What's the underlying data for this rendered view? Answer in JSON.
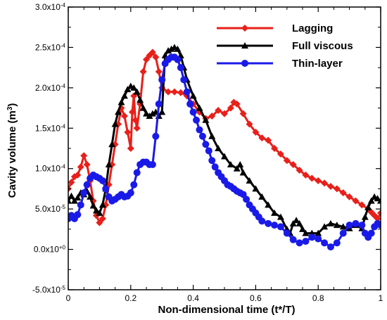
{
  "chart_data": {
    "type": "line",
    "title": "",
    "xlabel": "Non-dimensional time (t*/T)",
    "ylabel": "Cavity volume (m³)",
    "xlim": [
      0,
      1
    ],
    "ylim": [
      -5e-05,
      0.0003
    ],
    "grid": false,
    "legend_position": "top-right",
    "x_ticks": [
      {
        "value": 0,
        "label": "0"
      },
      {
        "value": 0.2,
        "label": "0.2"
      },
      {
        "value": 0.4,
        "label": "0.4"
      },
      {
        "value": 0.6,
        "label": "0.6"
      },
      {
        "value": 0.8,
        "label": "0.8"
      },
      {
        "value": 1,
        "label": "1"
      }
    ],
    "y_ticks": [
      {
        "value": -5e-05,
        "mant": "-5.0x10",
        "exp": "-5"
      },
      {
        "value": 0,
        "mant": "0.0x10",
        "exp": "+0"
      },
      {
        "value": 5e-05,
        "mant": "5.0x10",
        "exp": "-5"
      },
      {
        "value": 0.0001,
        "mant": "1.0x10",
        "exp": "-4"
      },
      {
        "value": 0.00015,
        "mant": "1.5x10",
        "exp": "-4"
      },
      {
        "value": 0.0002,
        "mant": "2.0x10",
        "exp": "-4"
      },
      {
        "value": 0.00025,
        "mant": "2.5x10",
        "exp": "-4"
      },
      {
        "value": 0.0003,
        "mant": "3.0x10",
        "exp": "-4"
      }
    ],
    "series": [
      {
        "name": "Lagging",
        "color": "#e8201a",
        "marker": "diamond",
        "points": [
          [
            0.0,
            7.5e-05
          ],
          [
            0.01,
            8.3e-05
          ],
          [
            0.02,
            9e-05
          ],
          [
            0.03,
            9.2e-05
          ],
          [
            0.04,
            0.000102
          ],
          [
            0.05,
            0.000116
          ],
          [
            0.06,
            0.000105
          ],
          [
            0.07,
            8.5e-05
          ],
          [
            0.08,
            6e-05
          ],
          [
            0.09,
            4.2e-05
          ],
          [
            0.1,
            3.3e-05
          ],
          [
            0.11,
            3.8e-05
          ],
          [
            0.12,
            5.5e-05
          ],
          [
            0.13,
            8e-05
          ],
          [
            0.14,
            0.000105
          ],
          [
            0.15,
            0.00013
          ],
          [
            0.16,
            0.000155
          ],
          [
            0.17,
            0.000175
          ],
          [
            0.18,
            0.000165
          ],
          [
            0.19,
            0.000145
          ],
          [
            0.2,
            0.000125
          ],
          [
            0.205,
            0.00017
          ],
          [
            0.21,
            0.00019
          ],
          [
            0.215,
            0.00016
          ],
          [
            0.22,
            0.00015
          ],
          [
            0.23,
            0.00018
          ],
          [
            0.24,
            0.00022
          ],
          [
            0.25,
            0.000235
          ],
          [
            0.26,
            0.00024
          ],
          [
            0.27,
            0.000244
          ],
          [
            0.28,
            0.000238
          ],
          [
            0.29,
            0.00022
          ],
          [
            0.3,
            0.0002
          ],
          [
            0.32,
            0.000195
          ],
          [
            0.34,
            0.000195
          ],
          [
            0.36,
            0.000194
          ],
          [
            0.38,
            0.00019
          ],
          [
            0.4,
            0.00018
          ],
          [
            0.42,
            0.00017
          ],
          [
            0.44,
            0.000162
          ],
          [
            0.46,
            0.000165
          ],
          [
            0.48,
            0.000172
          ],
          [
            0.5,
            0.000168
          ],
          [
            0.52,
            0.000175
          ],
          [
            0.53,
            0.000182
          ],
          [
            0.54,
            0.00018
          ],
          [
            0.56,
            0.000168
          ],
          [
            0.58,
            0.000155
          ],
          [
            0.6,
            0.000145
          ],
          [
            0.62,
            0.000138
          ],
          [
            0.64,
            0.000135
          ],
          [
            0.66,
            0.000125
          ],
          [
            0.68,
            0.000118
          ],
          [
            0.7,
            0.00011
          ],
          [
            0.72,
            0.000105
          ],
          [
            0.74,
            9.8e-05
          ],
          [
            0.76,
            9.2e-05
          ],
          [
            0.78,
            8.8e-05
          ],
          [
            0.8,
            8.5e-05
          ],
          [
            0.82,
            8.2e-05
          ],
          [
            0.84,
            7.8e-05
          ],
          [
            0.86,
            7.5e-05
          ],
          [
            0.88,
            7e-05
          ],
          [
            0.9,
            6.5e-05
          ],
          [
            0.92,
            6e-05
          ],
          [
            0.94,
            5.5e-05
          ],
          [
            0.96,
            5e-05
          ],
          [
            0.97,
            4.6e-05
          ],
          [
            0.98,
            4.2e-05
          ],
          [
            0.99,
            3.8e-05
          ],
          [
            1.0,
            4.5e-05
          ]
        ]
      },
      {
        "name": "Full viscous",
        "color": "#000000",
        "marker": "triangle",
        "points": [
          [
            0.0,
            6e-05
          ],
          [
            0.01,
            6.6e-05
          ],
          [
            0.02,
            6e-05
          ],
          [
            0.03,
            6.4e-05
          ],
          [
            0.04,
            7e-05
          ],
          [
            0.05,
            6.8e-05
          ],
          [
            0.06,
            7.2e-05
          ],
          [
            0.07,
            6.5e-05
          ],
          [
            0.08,
            5.4e-05
          ],
          [
            0.09,
            4.8e-05
          ],
          [
            0.1,
            4.5e-05
          ],
          [
            0.11,
            5.5e-05
          ],
          [
            0.12,
            7.5e-05
          ],
          [
            0.13,
            0.000105
          ],
          [
            0.14,
            0.00013
          ],
          [
            0.15,
            0.000155
          ],
          [
            0.16,
            0.00017
          ],
          [
            0.17,
            0.000182
          ],
          [
            0.18,
            0.00019
          ],
          [
            0.19,
            0.000198
          ],
          [
            0.2,
            0.000202
          ],
          [
            0.21,
            0.0002
          ],
          [
            0.22,
            0.000195
          ],
          [
            0.23,
            0.000185
          ],
          [
            0.24,
            0.000175
          ],
          [
            0.25,
            0.000168
          ],
          [
            0.26,
            0.000165
          ],
          [
            0.27,
            0.000168
          ],
          [
            0.28,
            0.00017
          ],
          [
            0.29,
            0.000165
          ],
          [
            0.3,
            0.00017
          ],
          [
            0.31,
            0.00024
          ],
          [
            0.32,
            0.000246
          ],
          [
            0.33,
            0.000248
          ],
          [
            0.34,
            0.00025
          ],
          [
            0.35,
            0.000248
          ],
          [
            0.36,
            0.00024
          ],
          [
            0.37,
            0.000225
          ],
          [
            0.38,
            0.00021
          ],
          [
            0.4,
            0.00019
          ],
          [
            0.42,
            0.000175
          ],
          [
            0.44,
            0.00016
          ],
          [
            0.46,
            0.00014
          ],
          [
            0.48,
            0.000125
          ],
          [
            0.5,
            0.000115
          ],
          [
            0.52,
            0.000105
          ],
          [
            0.54,
            0.0001
          ],
          [
            0.55,
            0.000105
          ],
          [
            0.56,
            9.5e-05
          ],
          [
            0.58,
            8.5e-05
          ],
          [
            0.6,
            7.5e-05
          ],
          [
            0.62,
            6.5e-05
          ],
          [
            0.64,
            5.5e-05
          ],
          [
            0.66,
            4.5e-05
          ],
          [
            0.68,
            4e-05
          ],
          [
            0.7,
            2.5e-05
          ],
          [
            0.71,
            2e-05
          ],
          [
            0.72,
            3.2e-05
          ],
          [
            0.73,
            3.6e-05
          ],
          [
            0.74,
            3.2e-05
          ],
          [
            0.75,
            2.5e-05
          ],
          [
            0.76,
            2e-05
          ],
          [
            0.78,
            2e-05
          ],
          [
            0.8,
            2e-05
          ],
          [
            0.82,
            2.8e-05
          ],
          [
            0.84,
            3.2e-05
          ],
          [
            0.86,
            3e-05
          ],
          [
            0.88,
            2.8e-05
          ],
          [
            0.9,
            2.6e-05
          ],
          [
            0.92,
            3e-05
          ],
          [
            0.94,
            2.6e-05
          ],
          [
            0.95,
            4e-05
          ],
          [
            0.96,
            5.2e-05
          ],
          [
            0.97,
            6e-05
          ],
          [
            0.98,
            6.5e-05
          ],
          [
            0.99,
            6.3e-05
          ],
          [
            1.0,
            6e-05
          ]
        ]
      },
      {
        "name": "Thin-layer",
        "color": "#1a1ae8",
        "marker": "circle",
        "points": [
          [
            0.0,
            3.8e-05
          ],
          [
            0.01,
            4.2e-05
          ],
          [
            0.02,
            3.8e-05
          ],
          [
            0.03,
            4.3e-05
          ],
          [
            0.04,
            5.5e-05
          ],
          [
            0.05,
            7e-05
          ],
          [
            0.06,
            8e-05
          ],
          [
            0.07,
            8.8e-05
          ],
          [
            0.08,
            9.2e-05
          ],
          [
            0.09,
            9e-05
          ],
          [
            0.1,
            8.8e-05
          ],
          [
            0.11,
            8.5e-05
          ],
          [
            0.12,
            7.5e-05
          ],
          [
            0.13,
            6.5e-05
          ],
          [
            0.14,
            6e-05
          ],
          [
            0.15,
            6.2e-05
          ],
          [
            0.16,
            6.5e-05
          ],
          [
            0.17,
            6.8e-05
          ],
          [
            0.18,
            6.5e-05
          ],
          [
            0.19,
            6.6e-05
          ],
          [
            0.2,
            7e-05
          ],
          [
            0.21,
            8e-05
          ],
          [
            0.22,
            9.5e-05
          ],
          [
            0.23,
            0.000105
          ],
          [
            0.24,
            0.000108
          ],
          [
            0.25,
            0.000108
          ],
          [
            0.26,
            0.000105
          ],
          [
            0.27,
            0.000105
          ],
          [
            0.28,
            0.00014
          ],
          [
            0.29,
            0.00018
          ],
          [
            0.3,
            0.00021
          ],
          [
            0.31,
            0.00023
          ],
          [
            0.32,
            0.000235
          ],
          [
            0.33,
            0.000238
          ],
          [
            0.34,
            0.000238
          ],
          [
            0.35,
            0.000235
          ],
          [
            0.36,
            0.000225
          ],
          [
            0.37,
            0.00021
          ],
          [
            0.38,
            0.000195
          ],
          [
            0.39,
            0.00018
          ],
          [
            0.4,
            0.00017
          ],
          [
            0.41,
            0.00016
          ],
          [
            0.42,
            0.000148
          ],
          [
            0.43,
            0.00014
          ],
          [
            0.44,
            0.00013
          ],
          [
            0.45,
            0.000122
          ],
          [
            0.46,
            0.00011
          ],
          [
            0.47,
            0.000102
          ],
          [
            0.48,
            9.5e-05
          ],
          [
            0.49,
            9e-05
          ],
          [
            0.5,
            8.5e-05
          ],
          [
            0.51,
            8e-05
          ],
          [
            0.52,
            7.8e-05
          ],
          [
            0.53,
            7.5e-05
          ],
          [
            0.54,
            7.2e-05
          ],
          [
            0.55,
            7e-05
          ],
          [
            0.56,
            6.8e-05
          ],
          [
            0.57,
            6.2e-05
          ],
          [
            0.58,
            5.5e-05
          ],
          [
            0.59,
            5e-05
          ],
          [
            0.6,
            4.5e-05
          ],
          [
            0.61,
            4e-05
          ],
          [
            0.62,
            3.5e-05
          ],
          [
            0.64,
            3.2e-05
          ],
          [
            0.66,
            3e-05
          ],
          [
            0.68,
            2.8e-05
          ],
          [
            0.7,
            2e-05
          ],
          [
            0.72,
            1.2e-05
          ],
          [
            0.74,
            8e-06
          ],
          [
            0.76,
            1e-05
          ],
          [
            0.78,
            1.5e-05
          ],
          [
            0.8,
            1.3e-05
          ],
          [
            0.82,
            8e-06
          ],
          [
            0.84,
            3e-06
          ],
          [
            0.86,
            8e-06
          ],
          [
            0.88,
            2e-05
          ],
          [
            0.9,
            3e-05
          ],
          [
            0.92,
            3.2e-05
          ],
          [
            0.94,
            3e-05
          ],
          [
            0.95,
            2e-05
          ],
          [
            0.96,
            1.5e-05
          ],
          [
            0.97,
            2e-05
          ],
          [
            0.98,
            2.8e-05
          ],
          [
            0.99,
            3.2e-05
          ],
          [
            1.0,
            3e-05
          ]
        ]
      }
    ]
  }
}
